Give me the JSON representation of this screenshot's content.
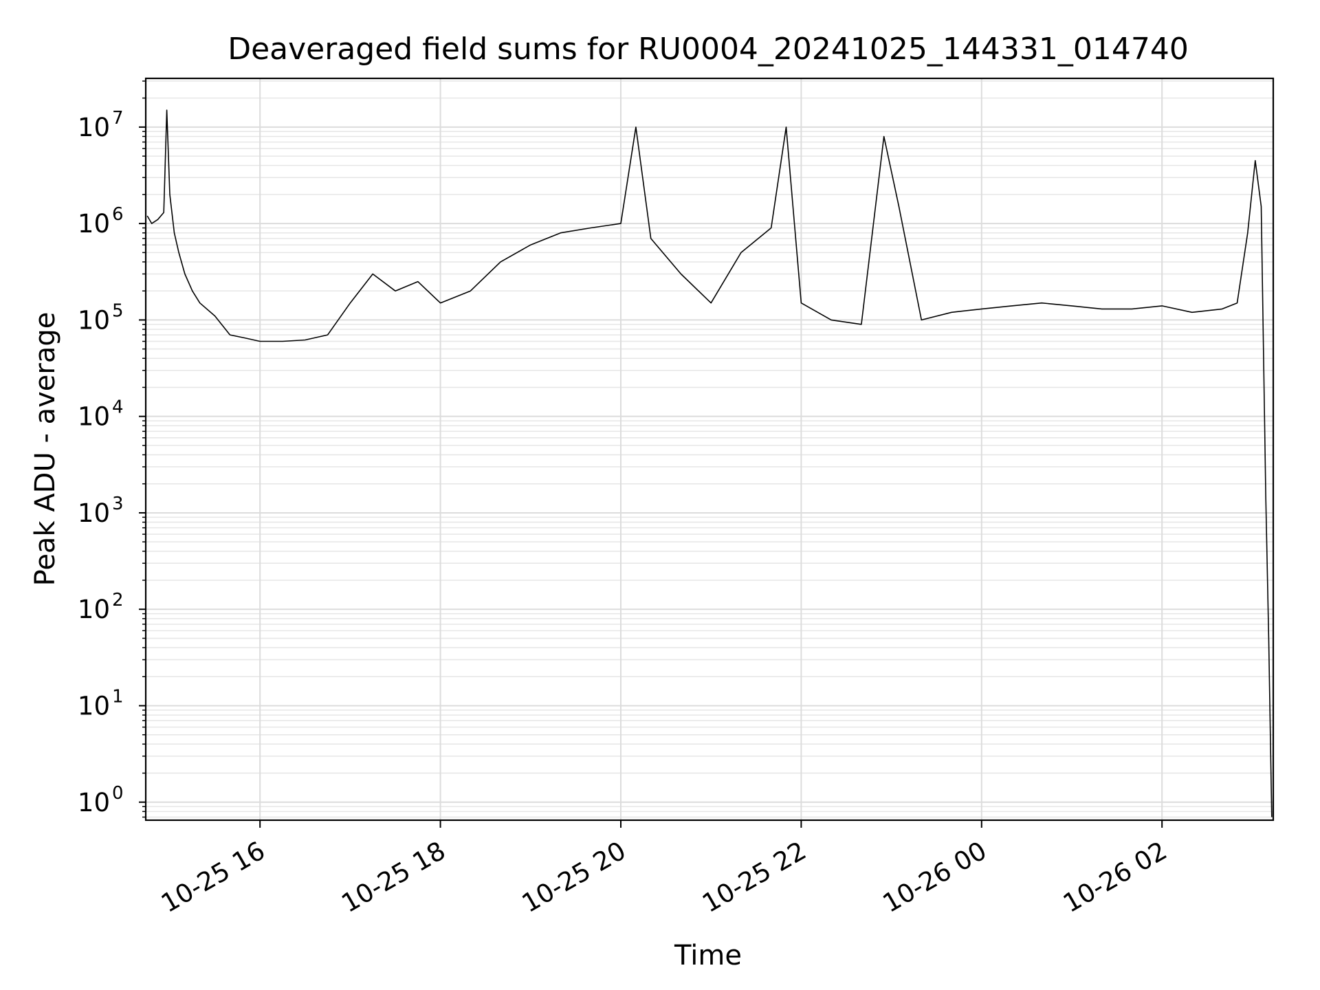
{
  "chart_data": {
    "type": "line",
    "title": "Deaveraged field sums for RU0004_20241025_144331_014740",
    "xlabel": "Time",
    "ylabel": "Peak ADU - average",
    "yscale": "log",
    "ylim": [
      0.65,
      32000000
    ],
    "xlim": [
      "2024-10-25 14:44",
      "2024-10-26 03:14"
    ],
    "grid": true,
    "grid_minor": true,
    "line_color": "#000000",
    "x_ticks": [
      {
        "t": "2024-10-25 16:00",
        "label": "10-25 16"
      },
      {
        "t": "2024-10-25 18:00",
        "label": "10-25 18"
      },
      {
        "t": "2024-10-25 20:00",
        "label": "10-25 20"
      },
      {
        "t": "2024-10-25 22:00",
        "label": "10-25 22"
      },
      {
        "t": "2024-10-26 00:00",
        "label": "10-26 00"
      },
      {
        "t": "2024-10-26 02:00",
        "label": "10-26 02"
      }
    ],
    "y_ticks": [
      {
        "value": 1,
        "base": "10",
        "exp": "0"
      },
      {
        "value": 10,
        "base": "10",
        "exp": "1"
      },
      {
        "value": 100,
        "base": "10",
        "exp": "2"
      },
      {
        "value": 1000,
        "base": "10",
        "exp": "3"
      },
      {
        "value": 10000,
        "base": "10",
        "exp": "4"
      },
      {
        "value": 100000,
        "base": "10",
        "exp": "5"
      },
      {
        "value": 1000000,
        "base": "10",
        "exp": "6"
      },
      {
        "value": 10000000,
        "base": "10",
        "exp": "7"
      }
    ],
    "series": [
      {
        "x": [
          "2024-10-25 14:45",
          "2024-10-25 14:48",
          "2024-10-25 14:52",
          "2024-10-25 14:56",
          "2024-10-25 14:58",
          "2024-10-25 15:00",
          "2024-10-25 15:03",
          "2024-10-25 15:06",
          "2024-10-25 15:10",
          "2024-10-25 15:15",
          "2024-10-25 15:20",
          "2024-10-25 15:30",
          "2024-10-25 15:40",
          "2024-10-25 15:50",
          "2024-10-25 16:00",
          "2024-10-25 16:15",
          "2024-10-25 16:30",
          "2024-10-25 16:45",
          "2024-10-25 17:00",
          "2024-10-25 17:15",
          "2024-10-25 17:30",
          "2024-10-25 17:45",
          "2024-10-25 18:00",
          "2024-10-25 18:20",
          "2024-10-25 18:40",
          "2024-10-25 19:00",
          "2024-10-25 19:20",
          "2024-10-25 19:40",
          "2024-10-25 20:00",
          "2024-10-25 20:10",
          "2024-10-25 20:20",
          "2024-10-25 20:40",
          "2024-10-25 21:00",
          "2024-10-25 21:20",
          "2024-10-25 21:40",
          "2024-10-25 21:50",
          "2024-10-25 22:00",
          "2024-10-25 22:20",
          "2024-10-25 22:40",
          "2024-10-25 22:55",
          "2024-10-25 23:05",
          "2024-10-25 23:20",
          "2024-10-25 23:40",
          "2024-10-26 00:00",
          "2024-10-26 00:20",
          "2024-10-26 00:40",
          "2024-10-26 01:00",
          "2024-10-26 01:20",
          "2024-10-26 01:40",
          "2024-10-26 02:00",
          "2024-10-26 02:20",
          "2024-10-26 02:40",
          "2024-10-26 02:50",
          "2024-10-26 02:57",
          "2024-10-26 03:02",
          "2024-10-26 03:06",
          "2024-10-26 03:09",
          "2024-10-26 03:11",
          "2024-10-26 03:13"
        ],
        "y": [
          1200000,
          1000000,
          1100000,
          1300000,
          15000000,
          2000000,
          800000,
          500000,
          300000,
          200000,
          150000,
          110000,
          70000,
          65000,
          60000,
          60000,
          62000,
          70000,
          150000,
          300000,
          200000,
          250000,
          150000,
          200000,
          400000,
          600000,
          800000,
          900000,
          1000000,
          10000000,
          700000,
          300000,
          150000,
          500000,
          900000,
          10000000,
          150000,
          100000,
          90000,
          8000000,
          1500000,
          100000,
          120000,
          130000,
          140000,
          150000,
          140000,
          130000,
          130000,
          140000,
          120000,
          130000,
          150000,
          800000,
          4500000,
          1500000,
          1500,
          50,
          0.7
        ]
      }
    ]
  }
}
